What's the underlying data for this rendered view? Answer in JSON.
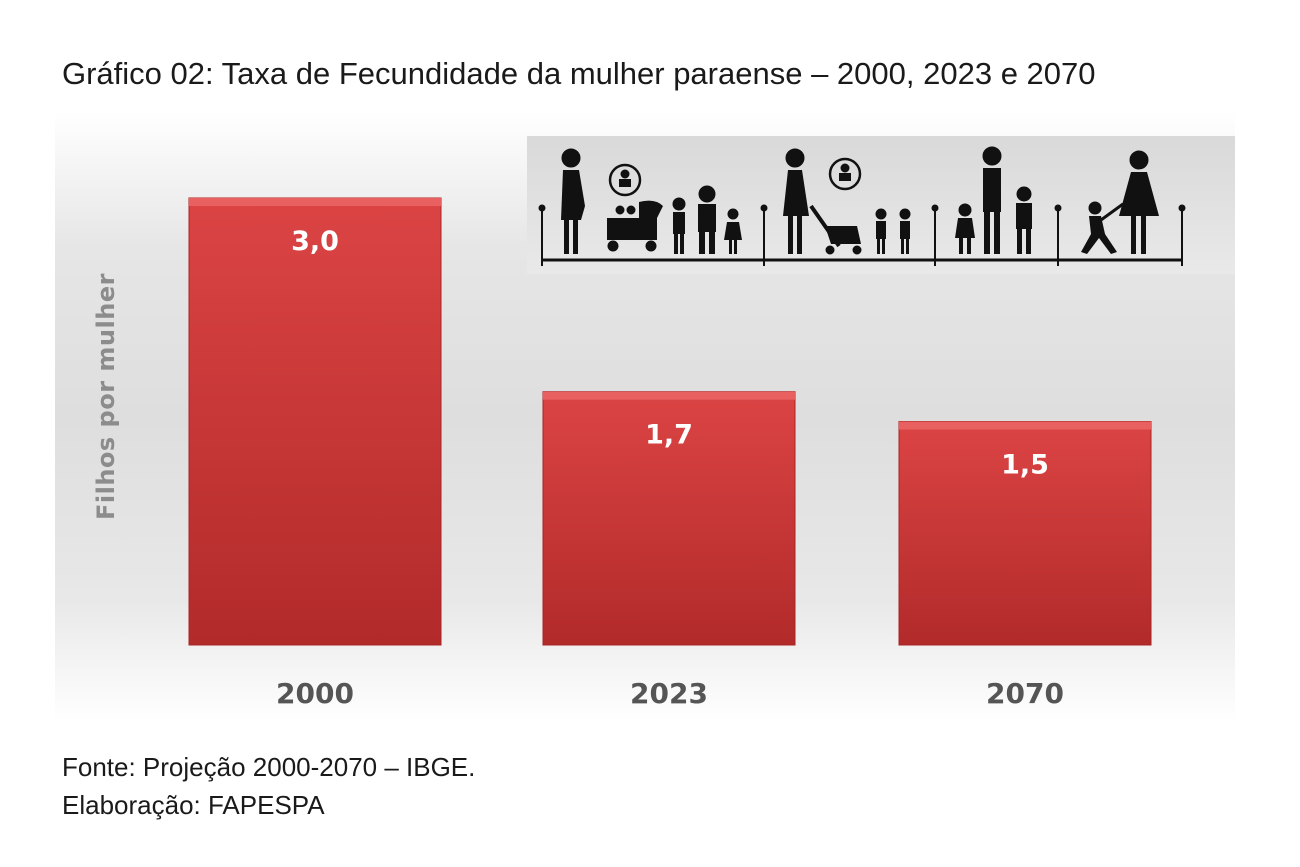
{
  "title": "Gráfico 02: Taxa de Fecundidade da mulher paraense – 2000, 2023 e 2070",
  "chart_data": {
    "type": "bar",
    "title": "Gráfico 02: Taxa de Fecundidade da mulher paraense – 2000, 2023 e 2070",
    "xlabel": "",
    "ylabel": "Filhos por mulher",
    "categories": [
      "2000",
      "2023",
      "2070"
    ],
    "values": [
      3.0,
      1.7,
      1.5
    ],
    "value_labels": [
      "3,0",
      "1,7",
      "1,5"
    ],
    "ylim": [
      0,
      3.0
    ],
    "grid": false,
    "bar_color": "#d23c3c",
    "illustration": "family-pictograms"
  },
  "source_lines": [
    "Fonte: Projeção 2000-2070 – IBGE.",
    "Elaboração: FAPESPA"
  ]
}
